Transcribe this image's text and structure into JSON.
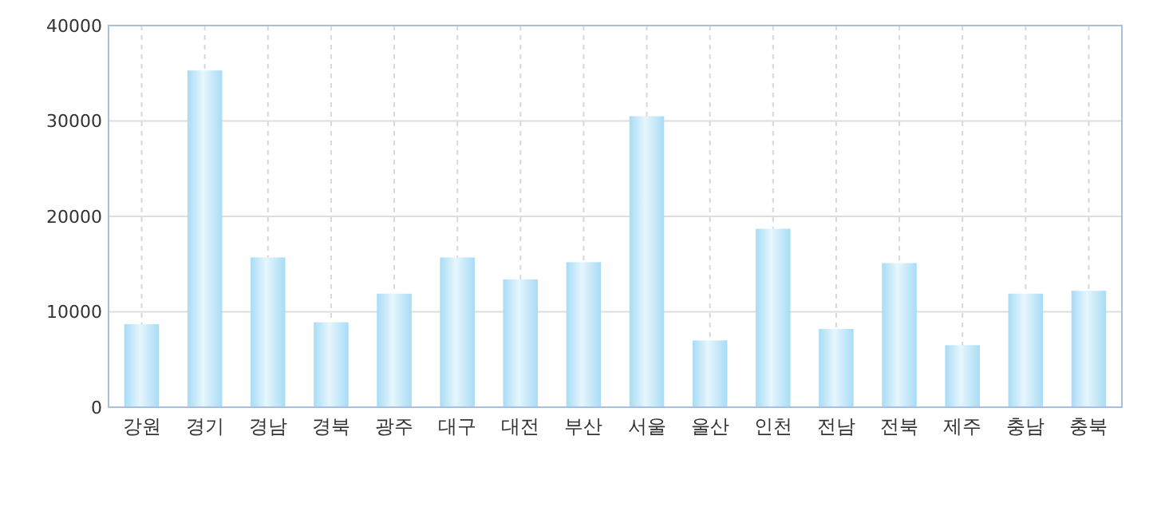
{
  "chart_data": {
    "type": "bar",
    "categories": [
      "강원",
      "경기",
      "경남",
      "경북",
      "광주",
      "대구",
      "대전",
      "부산",
      "서울",
      "울산",
      "인천",
      "전남",
      "전북",
      "제주",
      "충남",
      "충북"
    ],
    "series": [
      {
        "color": "#a8dcf5",
        "values": [
          8700,
          35300,
          15700,
          8900,
          11900,
          15700,
          13400,
          15200,
          30500,
          7000,
          18700,
          8200,
          15100,
          6500,
          11900,
          12200
        ]
      }
    ],
    "ylim": [
      0,
      40000
    ],
    "yticks": [
      0,
      10000,
      20000,
      30000,
      40000
    ],
    "grid": true
  }
}
